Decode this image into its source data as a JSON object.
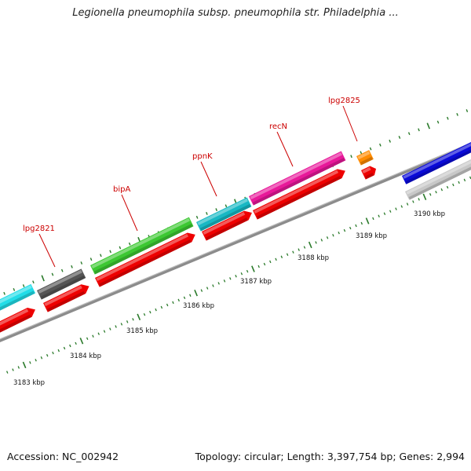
{
  "title": "Legionella pneumophila subsp. pneumophila str. Philadelphia ...",
  "footer": {
    "accession": "Accession: NC_002942",
    "summary": "Topology: circular; Length: 3,397,754 bp; Genes: 2,994"
  },
  "scale_labels": [
    "3183 kbp",
    "3184 kbp",
    "3185 kbp",
    "3186 kbp",
    "3187 kbp",
    "3188 kbp",
    "3189 kbp",
    "3190 kbp"
  ],
  "gene_labels": [
    "lpg2821",
    "bipA",
    "ppnK",
    "recN",
    "lpg2825"
  ],
  "colors": {
    "cyan": "#22dde8",
    "dark_gray": "#555555",
    "green": "#3cc832",
    "teal": "#18b8c4",
    "magenta": "#e8189a",
    "orange": "#ff8c00",
    "red": "#ee0000",
    "blue": "#0a0ad8",
    "light_gray": "#c8c8c8",
    "backbone": "#8c8c8c",
    "tick": "#2a7a2a",
    "label_red": "#cc0000"
  }
}
